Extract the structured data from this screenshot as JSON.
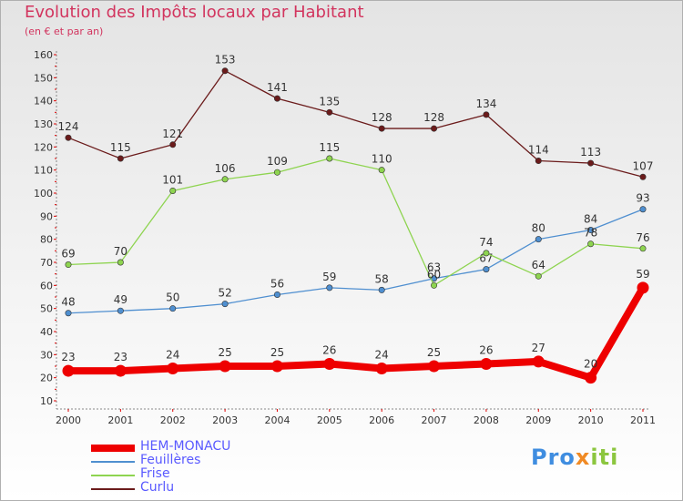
{
  "header": {
    "title": "Evolution des Impôts locaux par Habitant",
    "subtitle": "(en € et par an)"
  },
  "logo": {
    "part1": "Pro",
    "part2": "x",
    "part3": "iti"
  },
  "chart_data": {
    "type": "line",
    "title": "Evolution des Impôts locaux par Habitant",
    "subtitle": "(en € et par an)",
    "xlabel": "",
    "ylabel": "",
    "x": [
      "2000",
      "2001",
      "2002",
      "2003",
      "2004",
      "2005",
      "2006",
      "2007",
      "2008",
      "2009",
      "2010",
      "2011"
    ],
    "yticks": [
      10,
      20,
      30,
      40,
      50,
      60,
      70,
      80,
      90,
      100,
      110,
      120,
      130,
      140,
      150,
      160
    ],
    "ylim": [
      10,
      160
    ],
    "grid": false,
    "legend_position": "bottom-left",
    "series": [
      {
        "name": "HEM-MONACU",
        "color": "#ee0000",
        "emphasis": true,
        "values": [
          23,
          23,
          24,
          25,
          25,
          26,
          24,
          25,
          26,
          27,
          20,
          59
        ]
      },
      {
        "name": "Feuillères",
        "color": "#4f8fd0",
        "emphasis": false,
        "values": [
          48,
          49,
          50,
          52,
          56,
          59,
          58,
          63,
          67,
          80,
          84,
          93
        ]
      },
      {
        "name": "Frise",
        "color": "#8ed450",
        "emphasis": false,
        "values": [
          69,
          70,
          101,
          106,
          109,
          115,
          110,
          60,
          74,
          64,
          78,
          76
        ]
      },
      {
        "name": "Curlu",
        "color": "#6b1b1b",
        "emphasis": false,
        "values": [
          124,
          115,
          121,
          153,
          141,
          135,
          128,
          128,
          134,
          114,
          113,
          107
        ]
      }
    ]
  }
}
